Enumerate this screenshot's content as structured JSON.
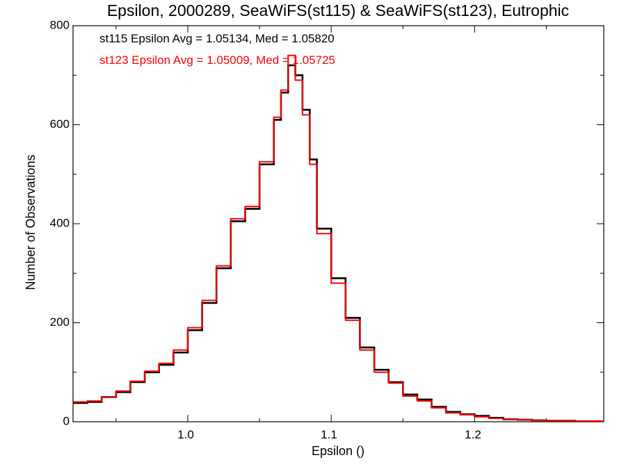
{
  "chart_data": {
    "type": "histogram",
    "title": "Epsilon, 2000289, SeaWiFS(st115) & SeaWiFS(st123), Eutrophic",
    "xlabel": "Epsilon ()",
    "ylabel": "Number of Observations",
    "xlim": [
      0.92,
      1.29
    ],
    "ylim": [
      0,
      800
    ],
    "x_ticks": [
      1.0,
      1.1,
      1.2
    ],
    "x_tick_labels": [
      "1.0",
      "1.1",
      "1.2"
    ],
    "y_ticks": [
      0,
      200,
      400,
      600,
      800
    ],
    "y_tick_labels": [
      "0",
      "200",
      "400",
      "600",
      "800"
    ],
    "grid": false,
    "legend": "none",
    "annotations": [
      {
        "text": "st115 Epsilon Avg = 1.05134, Med = 1.05820",
        "color": "#000000"
      },
      {
        "text": "st123 Epsilon Avg = 1.05009, Med = 1.05725",
        "color": "#ff0000"
      }
    ],
    "series": [
      {
        "color": "#000000",
        "points": [
          [
            0.92,
            38
          ],
          [
            0.93,
            40
          ],
          [
            0.94,
            50
          ],
          [
            0.95,
            60
          ],
          [
            0.96,
            80
          ],
          [
            0.97,
            100
          ],
          [
            0.98,
            115
          ],
          [
            0.99,
            140
          ],
          [
            1.0,
            185
          ],
          [
            1.01,
            240
          ],
          [
            1.02,
            310
          ],
          [
            1.03,
            405
          ],
          [
            1.04,
            430
          ],
          [
            1.05,
            520
          ],
          [
            1.06,
            610
          ],
          [
            1.065,
            665
          ],
          [
            1.07,
            720
          ],
          [
            1.075,
            700
          ],
          [
            1.08,
            630
          ],
          [
            1.085,
            530
          ],
          [
            1.09,
            390
          ],
          [
            1.1,
            290
          ],
          [
            1.11,
            210
          ],
          [
            1.12,
            150
          ],
          [
            1.13,
            105
          ],
          [
            1.14,
            80
          ],
          [
            1.15,
            55
          ],
          [
            1.16,
            45
          ],
          [
            1.17,
            30
          ],
          [
            1.18,
            20
          ],
          [
            1.19,
            15
          ],
          [
            1.2,
            12
          ],
          [
            1.21,
            8
          ],
          [
            1.22,
            5
          ],
          [
            1.23,
            4
          ],
          [
            1.24,
            3
          ],
          [
            1.25,
            2
          ],
          [
            1.26,
            2
          ],
          [
            1.27,
            1
          ],
          [
            1.28,
            1
          ],
          [
            1.29,
            1
          ]
        ]
      },
      {
        "color": "#ff0000",
        "points": [
          [
            0.92,
            40
          ],
          [
            0.93,
            42
          ],
          [
            0.94,
            50
          ],
          [
            0.95,
            62
          ],
          [
            0.96,
            82
          ],
          [
            0.97,
            102
          ],
          [
            0.98,
            118
          ],
          [
            0.99,
            145
          ],
          [
            1.0,
            190
          ],
          [
            1.01,
            245
          ],
          [
            1.02,
            315
          ],
          [
            1.03,
            410
          ],
          [
            1.04,
            435
          ],
          [
            1.05,
            525
          ],
          [
            1.06,
            615
          ],
          [
            1.065,
            670
          ],
          [
            1.07,
            740
          ],
          [
            1.075,
            690
          ],
          [
            1.08,
            620
          ],
          [
            1.085,
            520
          ],
          [
            1.09,
            380
          ],
          [
            1.1,
            280
          ],
          [
            1.11,
            205
          ],
          [
            1.12,
            145
          ],
          [
            1.13,
            100
          ],
          [
            1.14,
            78
          ],
          [
            1.15,
            52
          ],
          [
            1.16,
            42
          ],
          [
            1.17,
            28
          ],
          [
            1.18,
            18
          ],
          [
            1.19,
            14
          ],
          [
            1.2,
            10
          ],
          [
            1.21,
            7
          ],
          [
            1.22,
            5
          ],
          [
            1.23,
            4
          ],
          [
            1.24,
            3
          ],
          [
            1.25,
            2
          ],
          [
            1.26,
            2
          ],
          [
            1.27,
            1
          ],
          [
            1.28,
            1
          ],
          [
            1.29,
            1
          ]
        ]
      }
    ]
  }
}
